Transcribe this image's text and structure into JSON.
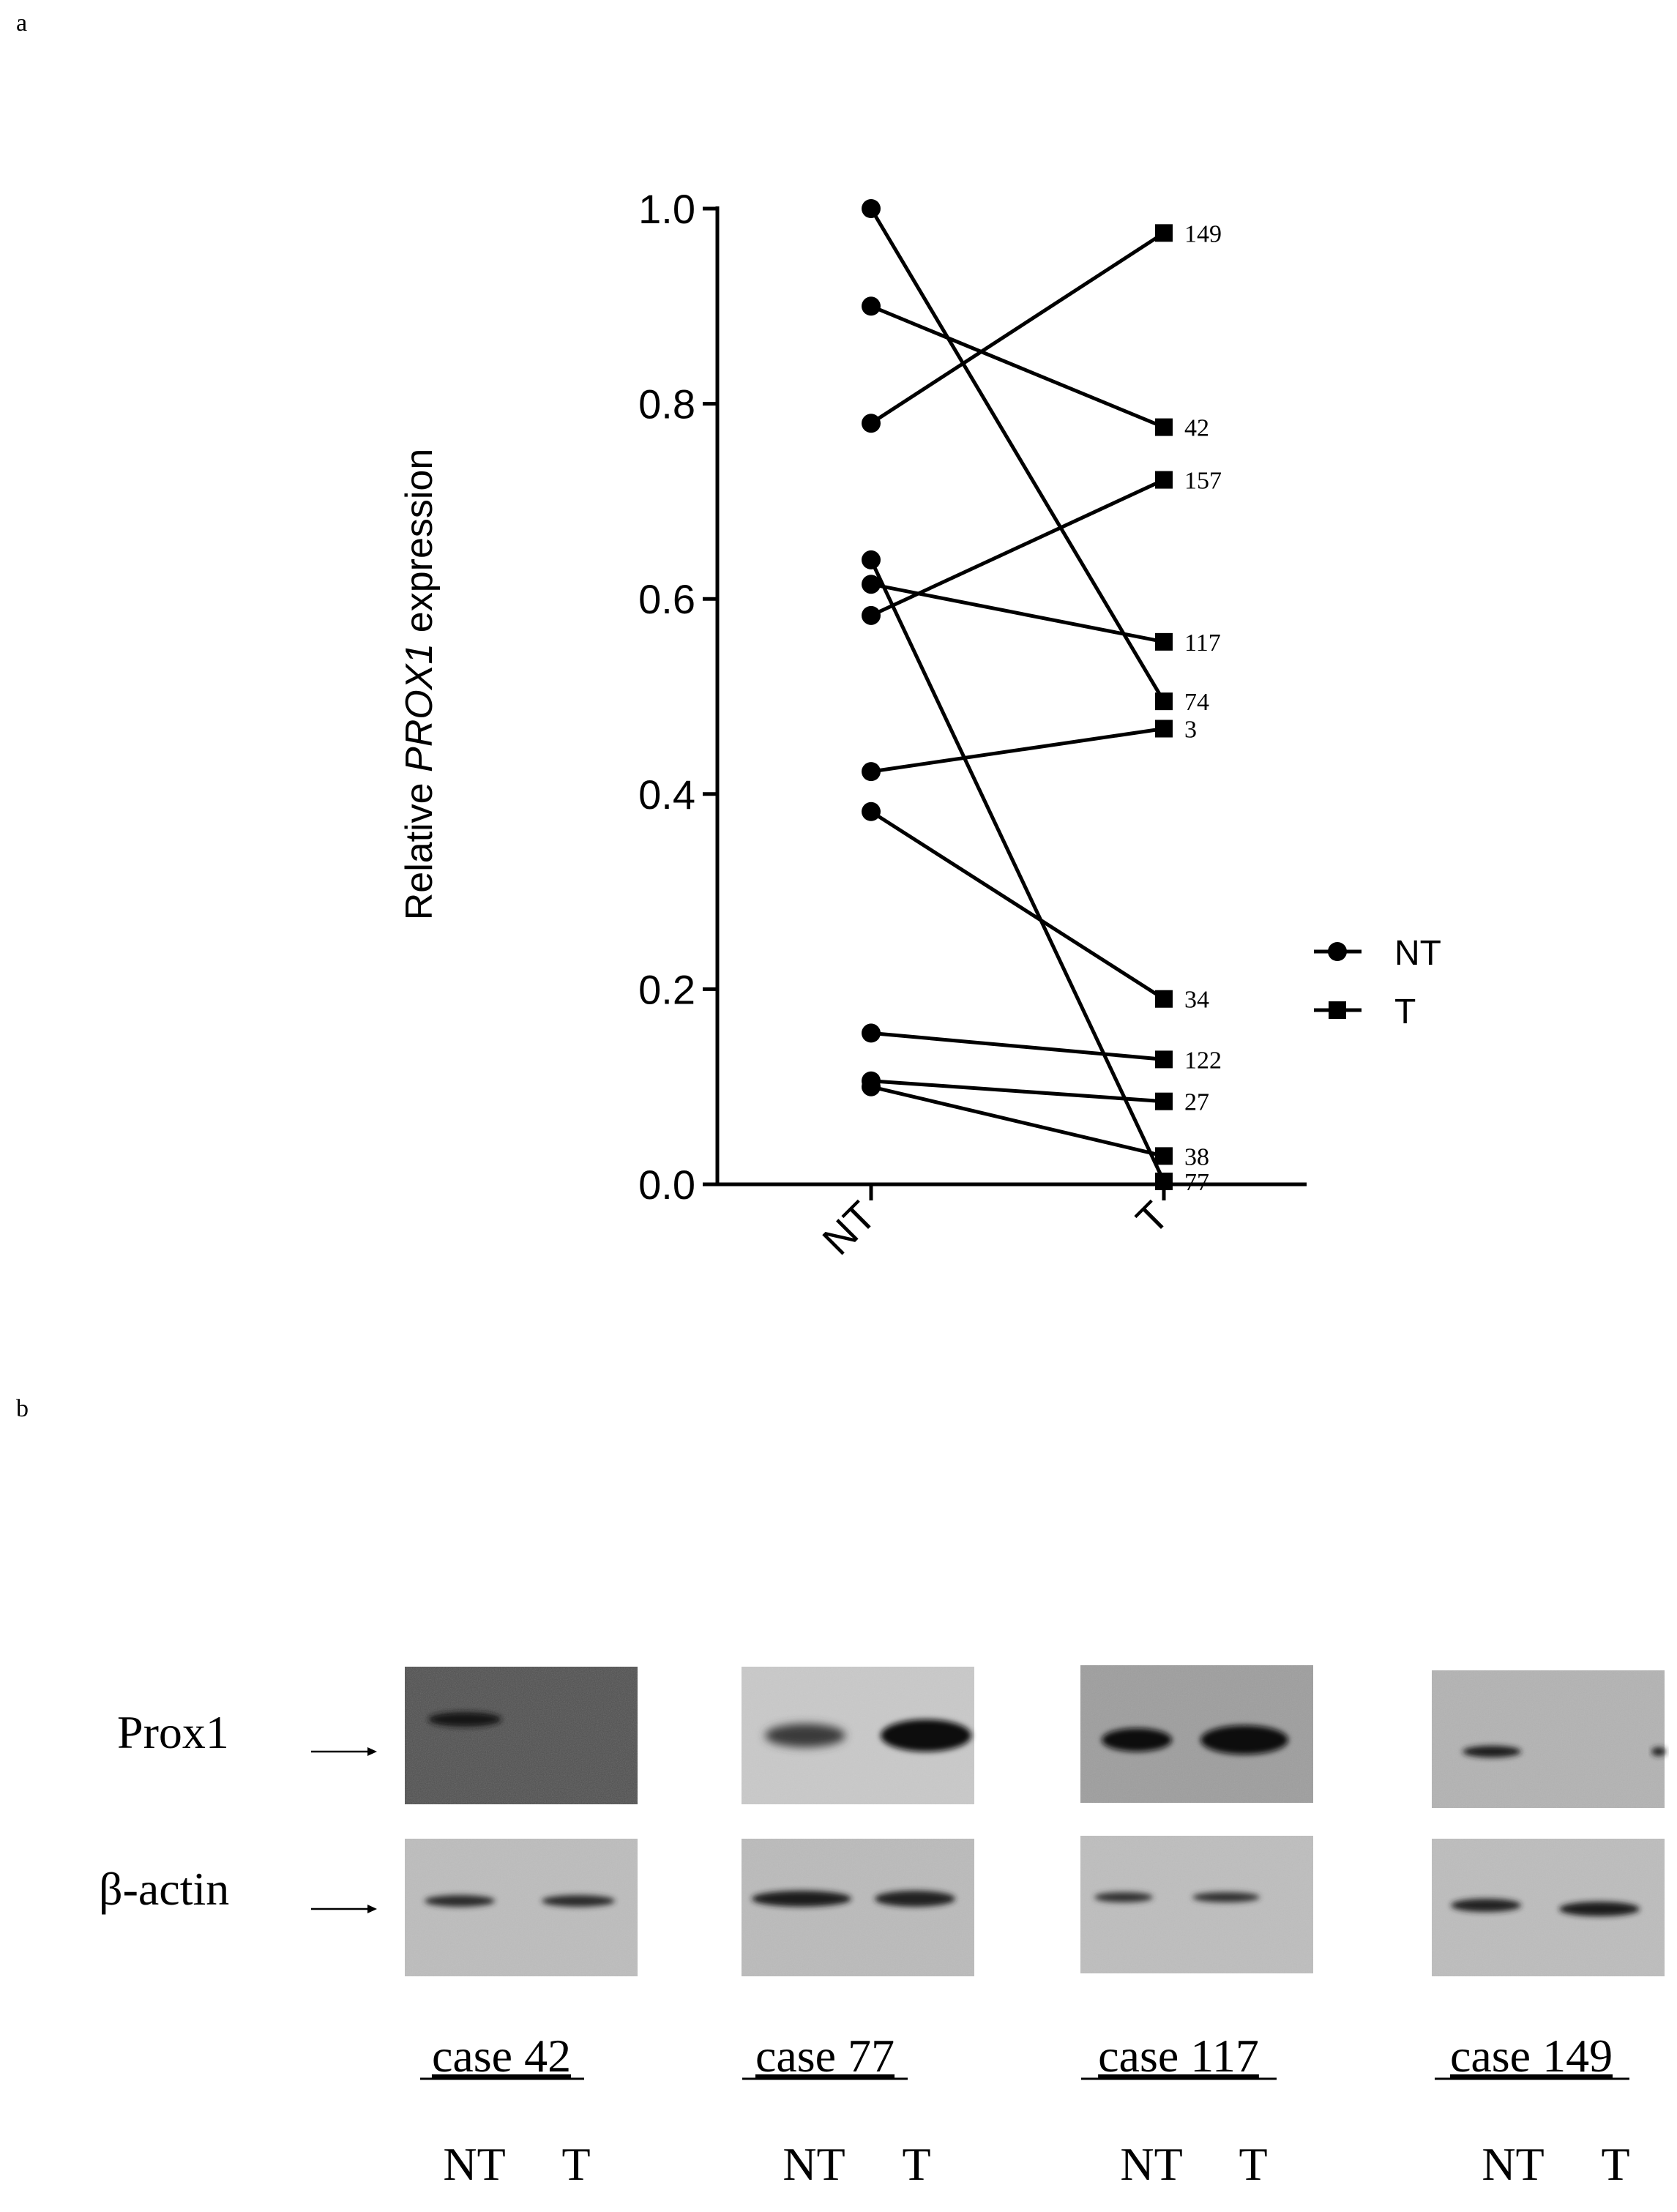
{
  "panel_a_label": "a",
  "panel_b_label": "b",
  "chart_data": {
    "type": "line",
    "ylabel_prefix": "Relative ",
    "ylabel_gene": "PROX1",
    "ylabel_suffix": " expression",
    "categories": [
      "NT",
      "T"
    ],
    "ylim": [
      0,
      1.0
    ],
    "yticks": [
      "0.0",
      "0.2",
      "0.4",
      "0.6",
      "0.8",
      "1.0"
    ],
    "ytick_values": [
      0.0,
      0.2,
      0.4,
      0.6,
      0.8,
      1.0
    ],
    "grid": false,
    "legend": [
      "NT",
      "T"
    ],
    "legend_position": "right",
    "pairs": [
      {
        "case": "149",
        "nt": 0.78,
        "t": 0.975
      },
      {
        "case": "42",
        "nt": 0.9,
        "t": 0.776
      },
      {
        "case": "157",
        "nt": 0.583,
        "t": 0.722
      },
      {
        "case": "117",
        "nt": 0.615,
        "t": 0.556
      },
      {
        "case": "74",
        "nt": 1.0,
        "t": 0.495
      },
      {
        "case": "3",
        "nt": 0.423,
        "t": 0.467
      },
      {
        "case": "34",
        "nt": 0.382,
        "t": 0.19
      },
      {
        "case": "122",
        "nt": 0.155,
        "t": 0.128
      },
      {
        "case": "27",
        "nt": 0.106,
        "t": 0.085
      },
      {
        "case": "38",
        "nt": 0.1,
        "t": 0.029
      },
      {
        "case": "77",
        "nt": 0.64,
        "t": 0.003
      }
    ]
  },
  "blot": {
    "row_labels": {
      "prox1": "Prox1",
      "actin": "β-actin"
    },
    "cases": [
      {
        "label": "case 42",
        "lane1": "NT",
        "lane2": "T"
      },
      {
        "label": "case 77",
        "lane1": "NT",
        "lane2": "T"
      },
      {
        "label": "case 117",
        "lane1": "NT",
        "lane2": "T"
      },
      {
        "label": "case 149",
        "lane1": "NT",
        "lane2": "T"
      }
    ]
  },
  "colors": {
    "ink": "#000000",
    "blot_bg_dark": "#5a5a5a",
    "blot_bg_light": "#c2c2c2",
    "band": "#111111"
  }
}
